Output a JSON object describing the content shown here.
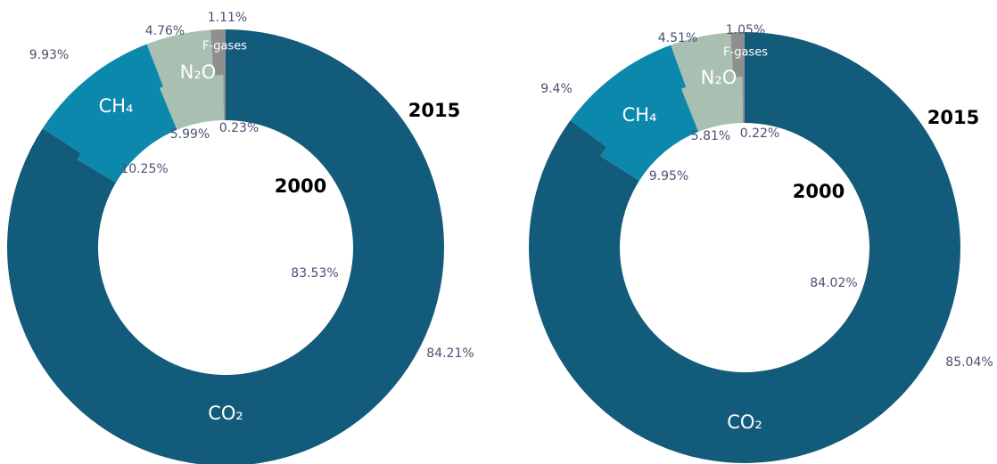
{
  "chart_data": [
    {
      "type": "donut",
      "categories": [
        "CO₂",
        "CH₄",
        "N₂O",
        "F-gases"
      ],
      "colors": [
        "#135b7a",
        "#0b88ab",
        "#a9bfb1",
        "#8f8f8f"
      ],
      "series": [
        {
          "name": "2015",
          "values": [
            84.21,
            9.93,
            4.76,
            1.11
          ],
          "value_labels": [
            "84.21%",
            "9.93%",
            "4.76%",
            "1.11%"
          ]
        },
        {
          "name": "2000",
          "values": [
            83.53,
            10.25,
            5.99,
            0.23
          ],
          "value_labels": [
            "83.53%",
            "10.25%",
            "5.99%",
            "0.23%"
          ]
        }
      ]
    },
    {
      "type": "donut",
      "categories": [
        "CO₂",
        "CH₄",
        "N₂O",
        "F-gases"
      ],
      "colors": [
        "#135b7a",
        "#0b88ab",
        "#a9bfb1",
        "#8f8f8f"
      ],
      "series": [
        {
          "name": "2015",
          "values": [
            85.04,
            9.4,
            4.51,
            1.05
          ],
          "value_labels": [
            "85.04%",
            "9.4%",
            "4.51%",
            "1.05%"
          ]
        },
        {
          "name": "2000",
          "values": [
            84.02,
            9.95,
            5.81,
            0.22
          ],
          "value_labels": [
            "84.02%",
            "9.95%",
            "5.81%",
            "0.22%"
          ]
        }
      ]
    }
  ]
}
